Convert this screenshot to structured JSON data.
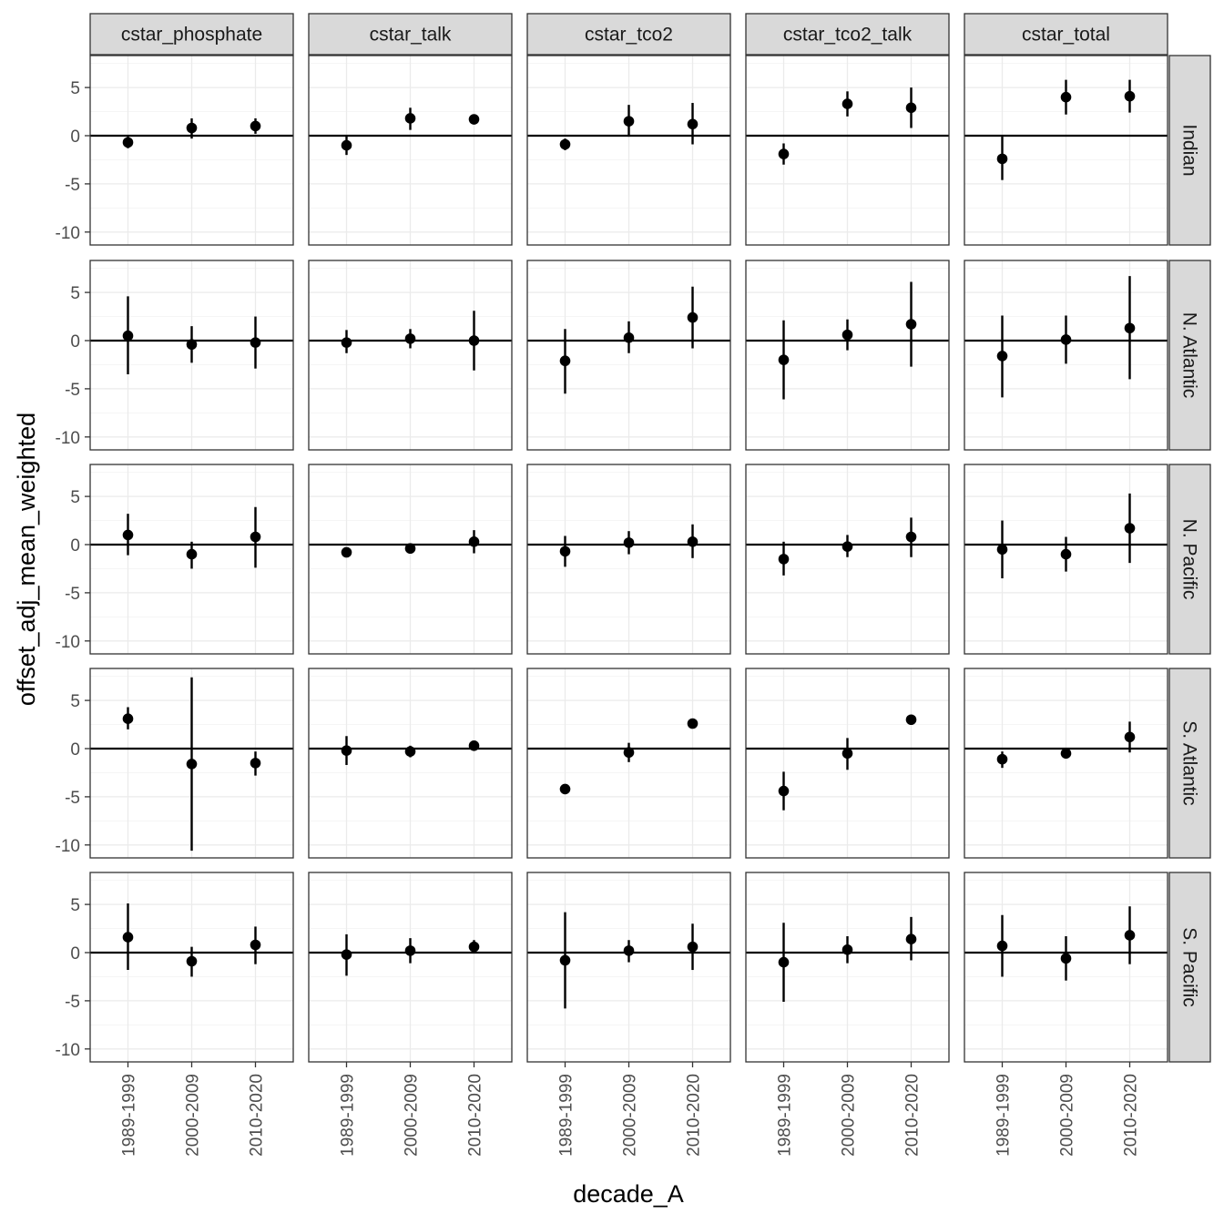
{
  "chart_data": {
    "type": "scatter",
    "subtype": "faceted point-range (mean ± interval)",
    "xlabel": "decade_A",
    "ylabel": "offset_adj_mean_weighted",
    "categories": [
      "1989-1999",
      "2000-2009",
      "2010-2020"
    ],
    "columns": [
      "cstar_phosphate",
      "cstar_talk",
      "cstar_tco2",
      "cstar_tco2_talk",
      "cstar_total"
    ],
    "rows": [
      "Indian",
      "N. Atlantic",
      "N. Pacific",
      "S. Atlantic",
      "S. Pacific"
    ],
    "y_ticks": [
      5,
      0,
      -5,
      -10
    ],
    "y_tick_labels": [
      "5",
      "0",
      "-5",
      "-10"
    ],
    "ylim": [
      -11,
      8.5
    ],
    "reference_line_y": 0,
    "grid": true,
    "panels": [
      {
        "row": "Indian",
        "column": "cstar_phosphate",
        "points": [
          {
            "x": "1989-1999",
            "y": -0.7,
            "lo": -1.3,
            "hi": -0.1
          },
          {
            "x": "2000-2009",
            "y": 0.8,
            "lo": -0.3,
            "hi": 1.8
          },
          {
            "x": "2010-2020",
            "y": 1.0,
            "lo": 0.2,
            "hi": 1.8
          }
        ]
      },
      {
        "row": "Indian",
        "column": "cstar_talk",
        "points": [
          {
            "x": "1989-1999",
            "y": -1.0,
            "lo": -2.0,
            "hi": 0.0
          },
          {
            "x": "2000-2009",
            "y": 1.8,
            "lo": 0.6,
            "hi": 2.9
          },
          {
            "x": "2010-2020",
            "y": 1.7,
            "lo": 1.4,
            "hi": 2.0
          }
        ]
      },
      {
        "row": "Indian",
        "column": "cstar_tco2",
        "points": [
          {
            "x": "1989-1999",
            "y": -0.9,
            "lo": -1.5,
            "hi": -0.3
          },
          {
            "x": "2000-2009",
            "y": 1.5,
            "lo": -0.1,
            "hi": 3.2
          },
          {
            "x": "2010-2020",
            "y": 1.2,
            "lo": -0.9,
            "hi": 3.4
          }
        ]
      },
      {
        "row": "Indian",
        "column": "cstar_tco2_talk",
        "points": [
          {
            "x": "1989-1999",
            "y": -1.9,
            "lo": -3.0,
            "hi": -0.8
          },
          {
            "x": "2000-2009",
            "y": 3.3,
            "lo": 2.0,
            "hi": 4.6
          },
          {
            "x": "2010-2020",
            "y": 2.9,
            "lo": 0.8,
            "hi": 5.0
          }
        ]
      },
      {
        "row": "Indian",
        "column": "cstar_total",
        "points": [
          {
            "x": "1989-1999",
            "y": -2.4,
            "lo": -4.6,
            "hi": -0.1
          },
          {
            "x": "2000-2009",
            "y": 4.0,
            "lo": 2.2,
            "hi": 5.8
          },
          {
            "x": "2010-2020",
            "y": 4.1,
            "lo": 2.4,
            "hi": 5.8
          }
        ]
      },
      {
        "row": "N. Atlantic",
        "column": "cstar_phosphate",
        "points": [
          {
            "x": "1989-1999",
            "y": 0.5,
            "lo": -3.5,
            "hi": 4.6
          },
          {
            "x": "2000-2009",
            "y": -0.4,
            "lo": -2.3,
            "hi": 1.5
          },
          {
            "x": "2010-2020",
            "y": -0.2,
            "lo": -2.9,
            "hi": 2.5
          }
        ]
      },
      {
        "row": "N. Atlantic",
        "column": "cstar_talk",
        "points": [
          {
            "x": "1989-1999",
            "y": -0.2,
            "lo": -1.3,
            "hi": 1.1
          },
          {
            "x": "2000-2009",
            "y": 0.2,
            "lo": -0.8,
            "hi": 1.2
          },
          {
            "x": "2010-2020",
            "y": 0.0,
            "lo": -3.1,
            "hi": 3.1
          }
        ]
      },
      {
        "row": "N. Atlantic",
        "column": "cstar_tco2",
        "points": [
          {
            "x": "1989-1999",
            "y": -2.1,
            "lo": -5.5,
            "hi": 1.2
          },
          {
            "x": "2000-2009",
            "y": 0.3,
            "lo": -1.3,
            "hi": 2.0
          },
          {
            "x": "2010-2020",
            "y": 2.4,
            "lo": -0.8,
            "hi": 5.6
          }
        ]
      },
      {
        "row": "N. Atlantic",
        "column": "cstar_tco2_talk",
        "points": [
          {
            "x": "1989-1999",
            "y": -2.0,
            "lo": -6.1,
            "hi": 2.1
          },
          {
            "x": "2000-2009",
            "y": 0.6,
            "lo": -1.0,
            "hi": 2.2
          },
          {
            "x": "2010-2020",
            "y": 1.7,
            "lo": -2.7,
            "hi": 6.1
          }
        ]
      },
      {
        "row": "N. Atlantic",
        "column": "cstar_total",
        "points": [
          {
            "x": "1989-1999",
            "y": -1.6,
            "lo": -5.9,
            "hi": 2.6
          },
          {
            "x": "2000-2009",
            "y": 0.1,
            "lo": -2.4,
            "hi": 2.6
          },
          {
            "x": "2010-2020",
            "y": 1.3,
            "lo": -4.0,
            "hi": 6.7
          }
        ]
      },
      {
        "row": "N. Pacific",
        "column": "cstar_phosphate",
        "points": [
          {
            "x": "1989-1999",
            "y": 1.0,
            "lo": -1.1,
            "hi": 3.2
          },
          {
            "x": "2000-2009",
            "y": -1.0,
            "lo": -2.5,
            "hi": 0.3
          },
          {
            "x": "2010-2020",
            "y": 0.8,
            "lo": -2.4,
            "hi": 3.9
          }
        ]
      },
      {
        "row": "N. Pacific",
        "column": "cstar_talk",
        "points": [
          {
            "x": "1989-1999",
            "y": -0.8,
            "lo": -1.2,
            "hi": -0.4
          },
          {
            "x": "2000-2009",
            "y": -0.4,
            "lo": -0.9,
            "hi": 0.1
          },
          {
            "x": "2010-2020",
            "y": 0.3,
            "lo": -0.9,
            "hi": 1.5
          }
        ]
      },
      {
        "row": "N. Pacific",
        "column": "cstar_tco2",
        "points": [
          {
            "x": "1989-1999",
            "y": -0.7,
            "lo": -2.3,
            "hi": 0.9
          },
          {
            "x": "2000-2009",
            "y": 0.2,
            "lo": -1.0,
            "hi": 1.4
          },
          {
            "x": "2010-2020",
            "y": 0.3,
            "lo": -1.4,
            "hi": 2.1
          }
        ]
      },
      {
        "row": "N. Pacific",
        "column": "cstar_tco2_talk",
        "points": [
          {
            "x": "1989-1999",
            "y": -1.5,
            "lo": -3.2,
            "hi": 0.3
          },
          {
            "x": "2000-2009",
            "y": -0.2,
            "lo": -1.3,
            "hi": 1.0
          },
          {
            "x": "2010-2020",
            "y": 0.8,
            "lo": -1.3,
            "hi": 2.8
          }
        ]
      },
      {
        "row": "N. Pacific",
        "column": "cstar_total",
        "points": [
          {
            "x": "1989-1999",
            "y": -0.5,
            "lo": -3.5,
            "hi": 2.5
          },
          {
            "x": "2000-2009",
            "y": -1.0,
            "lo": -2.8,
            "hi": 0.8
          },
          {
            "x": "2010-2020",
            "y": 1.7,
            "lo": -1.9,
            "hi": 5.3
          }
        ]
      },
      {
        "row": "S. Atlantic",
        "column": "cstar_phosphate",
        "points": [
          {
            "x": "1989-1999",
            "y": 3.1,
            "lo": 2.0,
            "hi": 4.3
          },
          {
            "x": "2000-2009",
            "y": -1.6,
            "lo": -10.6,
            "hi": 7.4
          },
          {
            "x": "2010-2020",
            "y": -1.5,
            "lo": -2.8,
            "hi": -0.3
          }
        ]
      },
      {
        "row": "S. Atlantic",
        "column": "cstar_talk",
        "points": [
          {
            "x": "1989-1999",
            "y": -0.2,
            "lo": -1.7,
            "hi": 1.3
          },
          {
            "x": "2000-2009",
            "y": -0.3,
            "lo": -0.9,
            "hi": 0.3
          },
          {
            "x": "2010-2020",
            "y": 0.3,
            "lo": -0.1,
            "hi": 0.7
          }
        ]
      },
      {
        "row": "S. Atlantic",
        "column": "cstar_tco2",
        "points": [
          {
            "x": "1989-1999",
            "y": -4.2,
            "lo": -4.4,
            "hi": -4.0
          },
          {
            "x": "2000-2009",
            "y": -0.4,
            "lo": -1.4,
            "hi": 0.6
          },
          {
            "x": "2010-2020",
            "y": 2.6,
            "lo": 2.4,
            "hi": 2.8
          }
        ]
      },
      {
        "row": "S. Atlantic",
        "column": "cstar_tco2_talk",
        "points": [
          {
            "x": "1989-1999",
            "y": -4.4,
            "lo": -6.4,
            "hi": -2.4
          },
          {
            "x": "2000-2009",
            "y": -0.5,
            "lo": -2.2,
            "hi": 1.1
          },
          {
            "x": "2010-2020",
            "y": 3.0,
            "lo": 2.8,
            "hi": 3.2
          }
        ]
      },
      {
        "row": "S. Atlantic",
        "column": "cstar_total",
        "points": [
          {
            "x": "1989-1999",
            "y": -1.1,
            "lo": -2.0,
            "hi": -0.3
          },
          {
            "x": "2000-2009",
            "y": -0.5,
            "lo": -0.7,
            "hi": -0.3
          },
          {
            "x": "2010-2020",
            "y": 1.2,
            "lo": -0.4,
            "hi": 2.8
          }
        ]
      },
      {
        "row": "S. Pacific",
        "column": "cstar_phosphate",
        "points": [
          {
            "x": "1989-1999",
            "y": 1.6,
            "lo": -1.8,
            "hi": 5.1
          },
          {
            "x": "2000-2009",
            "y": -0.9,
            "lo": -2.5,
            "hi": 0.6
          },
          {
            "x": "2010-2020",
            "y": 0.8,
            "lo": -1.2,
            "hi": 2.7
          }
        ]
      },
      {
        "row": "S. Pacific",
        "column": "cstar_talk",
        "points": [
          {
            "x": "1989-1999",
            "y": -0.2,
            "lo": -2.4,
            "hi": 1.9
          },
          {
            "x": "2000-2009",
            "y": 0.2,
            "lo": -1.1,
            "hi": 1.5
          },
          {
            "x": "2010-2020",
            "y": 0.6,
            "lo": 0.0,
            "hi": 1.3
          }
        ]
      },
      {
        "row": "S. Pacific",
        "column": "cstar_tco2",
        "points": [
          {
            "x": "1989-1999",
            "y": -0.8,
            "lo": -5.8,
            "hi": 4.2
          },
          {
            "x": "2000-2009",
            "y": 0.2,
            "lo": -1.0,
            "hi": 1.3
          },
          {
            "x": "2010-2020",
            "y": 0.6,
            "lo": -1.8,
            "hi": 3.0
          }
        ]
      },
      {
        "row": "S. Pacific",
        "column": "cstar_tco2_talk",
        "points": [
          {
            "x": "1989-1999",
            "y": -1.0,
            "lo": -5.1,
            "hi": 3.1
          },
          {
            "x": "2000-2009",
            "y": 0.3,
            "lo": -1.1,
            "hi": 1.7
          },
          {
            "x": "2010-2020",
            "y": 1.4,
            "lo": -0.8,
            "hi": 3.7
          }
        ]
      },
      {
        "row": "S. Pacific",
        "column": "cstar_total",
        "points": [
          {
            "x": "1989-1999",
            "y": 0.7,
            "lo": -2.5,
            "hi": 3.9
          },
          {
            "x": "2000-2009",
            "y": -0.6,
            "lo": -2.9,
            "hi": 1.7
          },
          {
            "x": "2010-2020",
            "y": 1.8,
            "lo": -1.2,
            "hi": 4.8
          }
        ]
      }
    ]
  },
  "colors": {
    "point": "#000000",
    "panel_border": "#333333",
    "strip_fill": "#d9d9d9",
    "grid_major": "#ebebeb",
    "grid_minor": "#f5f5f5",
    "tick_text": "#4d4d4d"
  }
}
